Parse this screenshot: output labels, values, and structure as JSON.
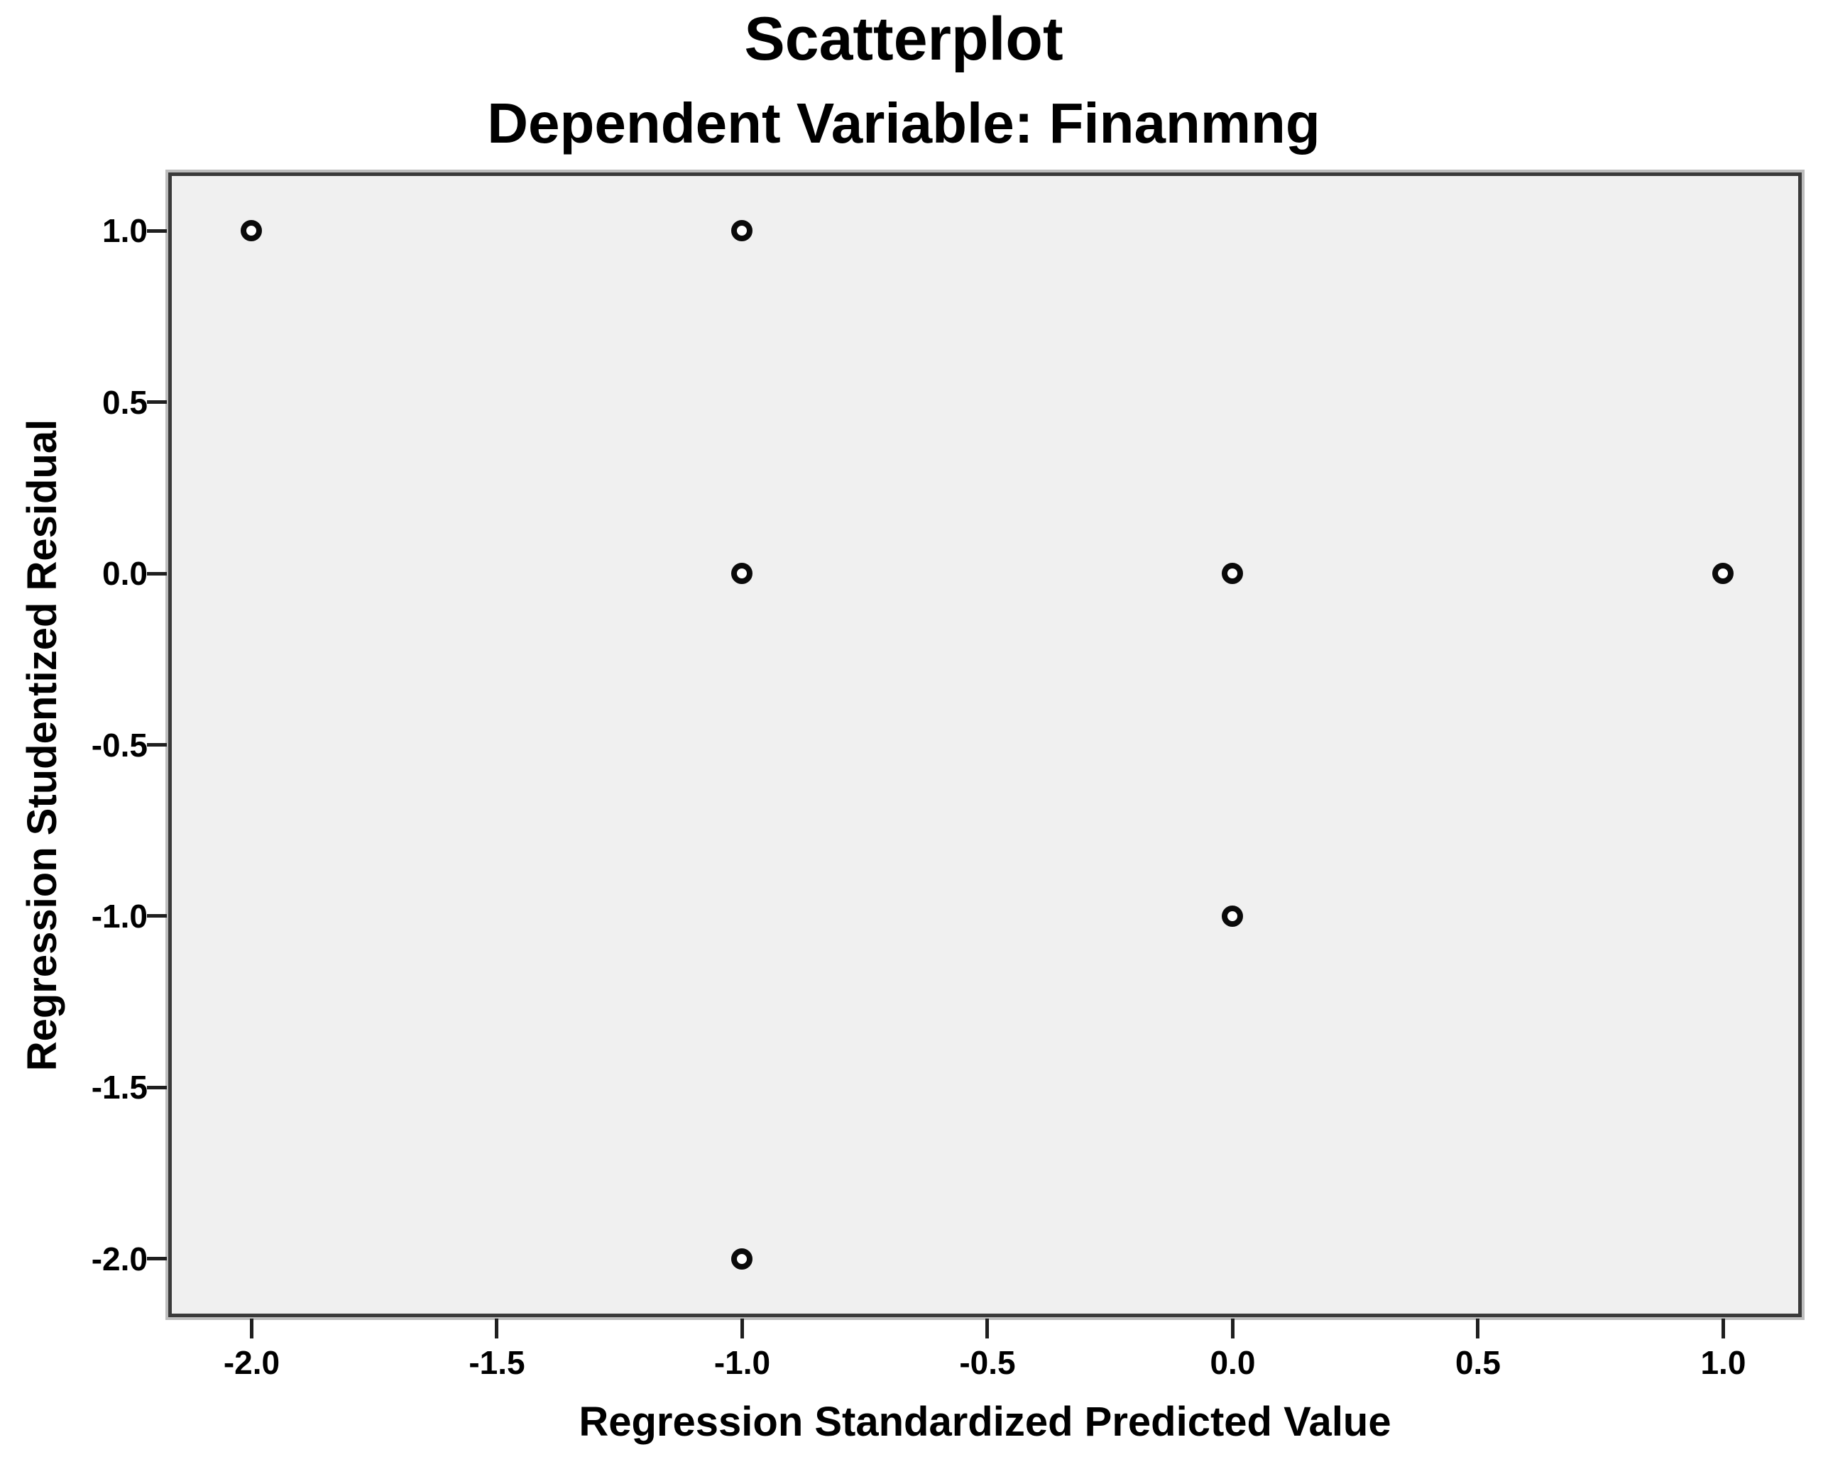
{
  "title": "Scatterplot",
  "subtitle": "Dependent Variable: Finanmng",
  "chart_data": {
    "type": "scatter",
    "title": "Scatterplot",
    "subtitle": "Dependent Variable: Finanmng",
    "xlabel": "Regression Standardized Predicted Value",
    "ylabel": "Regression Studentized Residual",
    "xlim": [
      -2.17,
      1.16
    ],
    "ylim": [
      -2.17,
      1.17
    ],
    "x_ticks": [
      -2.0,
      -1.5,
      -1.0,
      -0.5,
      0.0,
      0.5,
      1.0
    ],
    "x_tick_labels": [
      "-2.0",
      "-1.5",
      "-1.0",
      "-0.5",
      "0.0",
      "0.5",
      "1.0"
    ],
    "y_ticks": [
      1.0,
      0.5,
      0.0,
      -0.5,
      -1.0,
      -1.5,
      -2.0
    ],
    "y_tick_labels": [
      "1.0",
      "0.5",
      "0.0",
      "-0.5",
      "-1.0",
      "-1.5",
      "-2.0"
    ],
    "points": [
      {
        "x": -2.0,
        "y": 1.0
      },
      {
        "x": -1.0,
        "y": 1.0
      },
      {
        "x": -1.0,
        "y": 0.0
      },
      {
        "x": 0.0,
        "y": 0.0
      },
      {
        "x": 1.0,
        "y": 0.0
      },
      {
        "x": 0.0,
        "y": -1.0
      },
      {
        "x": -1.0,
        "y": -2.0
      }
    ],
    "grid": false,
    "legend": "none",
    "marker": "open-circle",
    "colors": {
      "page_bg": "#ffffff",
      "plot_bg": "#f0f0f0",
      "frame": "#3a3a3a",
      "frame_bevel": "#bdbdbd",
      "tick": "#1f1f1f",
      "marker_stroke": "#0a0a0a",
      "marker_fill": "#ffffff",
      "text": "#000000"
    }
  }
}
